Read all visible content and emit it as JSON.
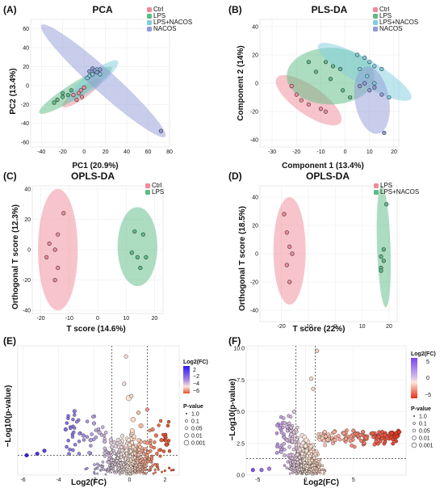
{
  "chart_data": [
    {
      "panel": "(A)",
      "type": "scatter",
      "title": "PCA",
      "xlabel": "PC1 (20.9%)",
      "ylabel": "PC2 (13.4%)",
      "xlim": [
        -50,
        80
      ],
      "ylim": [
        -65,
        70
      ],
      "xticks": [
        -40,
        -20,
        0,
        20,
        40,
        60,
        80
      ],
      "yticks": [
        -60,
        -40,
        -20,
        0,
        20,
        40,
        60
      ],
      "legend": [
        "Ctrl",
        "LPS",
        "LPS+NACOS",
        "NACOS"
      ],
      "series": [
        {
          "name": "Ctrl",
          "color": "#f08a98",
          "points": [
            [
              -10,
              -10
            ],
            [
              -5,
              -8
            ],
            [
              -3,
              -5
            ],
            [
              0,
              -2
            ],
            [
              -2,
              -12
            ],
            [
              -7,
              -15
            ]
          ],
          "ellipse": {
            "cx": -2,
            "cy": -8,
            "rx": 22,
            "ry": 6,
            "angle": 35
          }
        },
        {
          "name": "LPS",
          "color": "#5cbc84",
          "points": [
            [
              -25,
              -15
            ],
            [
              -20,
              -12
            ],
            [
              -15,
              -10
            ],
            [
              -12,
              -5
            ],
            [
              -20,
              -8
            ],
            [
              -28,
              -18
            ]
          ],
          "ellipse": {
            "cx": -8,
            "cy": -5,
            "rx": 40,
            "ry": 8,
            "angle": 32
          }
        },
        {
          "name": "LPS+NACOS",
          "color": "#7fcde0",
          "points": [
            [
              5,
              10
            ],
            [
              8,
              12
            ],
            [
              10,
              15
            ],
            [
              12,
              17
            ],
            [
              3,
              8
            ],
            [
              15,
              12
            ]
          ],
          "ellipse": {
            "cx": 8,
            "cy": 5,
            "rx": 30,
            "ry": 8,
            "angle": 38
          }
        },
        {
          "name": "NACOS",
          "color": "#8f9bd8",
          "points": [
            [
              5,
              15
            ],
            [
              8,
              18
            ],
            [
              10,
              16
            ],
            [
              12,
              14
            ],
            [
              15,
              17
            ],
            [
              72,
              -48
            ]
          ],
          "ellipse": {
            "cx": 18,
            "cy": 5,
            "rx": 78,
            "ry": 12,
            "angle": -42
          }
        }
      ]
    },
    {
      "panel": "(B)",
      "type": "scatter",
      "title": "PLS-DA",
      "xlabel": "Component 1 (13.4%)",
      "ylabel": "Component 2 (14%)",
      "xlim": [
        -35,
        22
      ],
      "ylim": [
        -45,
        45
      ],
      "xticks": [
        -30,
        -20,
        -10,
        0,
        10,
        20
      ],
      "yticks": [
        -40,
        -20,
        0,
        20,
        40
      ],
      "legend": [
        "Ctrl",
        "LPS",
        "LPS+NACOS",
        "NACOS"
      ],
      "series": [
        {
          "name": "Ctrl",
          "color": "#f08a98",
          "points": [
            [
              -22,
              -2
            ],
            [
              -20,
              -8
            ],
            [
              -18,
              -12
            ],
            [
              -15,
              -15
            ],
            [
              -10,
              -18
            ],
            [
              -8,
              -20
            ]
          ],
          "ellipse": {
            "cx": -15,
            "cy": -12,
            "rx": 16,
            "ry": 10,
            "angle": -35
          }
        },
        {
          "name": "LPS",
          "color": "#5cbc84",
          "points": [
            [
              -15,
              15
            ],
            [
              -8,
              15
            ],
            [
              -5,
              12
            ],
            [
              -2,
              10
            ],
            [
              -12,
              8
            ],
            [
              -6,
              3
            ],
            [
              -1,
              -5
            ],
            [
              2,
              -10
            ]
          ],
          "ellipse": {
            "cx": -6,
            "cy": 5,
            "rx": 18,
            "ry": 20,
            "angle": 0
          }
        },
        {
          "name": "LPS+NACOS",
          "color": "#7fcde0",
          "points": [
            [
              5,
              20
            ],
            [
              8,
              18
            ],
            [
              10,
              15
            ],
            [
              12,
              12
            ],
            [
              15,
              10
            ],
            [
              6,
              10
            ],
            [
              9,
              5
            ],
            [
              12,
              0
            ],
            [
              18,
              -10
            ]
          ],
          "ellipse": {
            "cx": 8,
            "cy": 8,
            "rx": 22,
            "ry": 9,
            "angle": -30
          }
        },
        {
          "name": "NACOS",
          "color": "#8f9bd8",
          "points": [
            [
              6,
              -2
            ],
            [
              8,
              0
            ],
            [
              10,
              -5
            ],
            [
              12,
              -3
            ],
            [
              15,
              -8
            ],
            [
              16,
              -35
            ]
          ],
          "ellipse": {
            "cx": 11,
            "cy": -12,
            "rx": 7,
            "ry": 24,
            "angle": 10
          }
        }
      ]
    },
    {
      "panel": "(C)",
      "type": "scatter",
      "title": "OPLS-DA",
      "xlabel": "T score (14.6%)",
      "ylabel": "Orthogonal T score  (12.3%)",
      "xlim": [
        -23,
        23
      ],
      "ylim": [
        -42,
        42
      ],
      "xticks": [
        -20,
        -10,
        0,
        10,
        20
      ],
      "yticks": [
        -40,
        -20,
        0,
        20,
        40
      ],
      "legend": [
        "Ctrl",
        "LPS"
      ],
      "series": [
        {
          "name": "Ctrl",
          "color": "#f08a98",
          "points": [
            [
              -12,
              24
            ],
            [
              -14,
              10
            ],
            [
              -17,
              4
            ],
            [
              -15,
              0
            ],
            [
              -18,
              -5
            ],
            [
              -14,
              -12
            ],
            [
              -15,
              -20
            ]
          ],
          "ellipse": {
            "cx": -14,
            "cy": 0,
            "rx": 7,
            "ry": 40,
            "angle": 0
          }
        },
        {
          "name": "LPS",
          "color": "#5cbc84",
          "points": [
            [
              13,
              12
            ],
            [
              16,
              10
            ],
            [
              12,
              -2
            ],
            [
              17,
              -5
            ],
            [
              14,
              -5
            ],
            [
              15,
              -12
            ]
          ],
          "ellipse": {
            "cx": 14,
            "cy": 2,
            "rx": 7,
            "ry": 26,
            "angle": 0
          }
        }
      ]
    },
    {
      "panel": "(D)",
      "type": "scatter",
      "title": "OPLS-DA",
      "xlabel": "T score (22%)",
      "ylabel": "Orthogonal T score  (18.5%)",
      "xlim": [
        -28,
        23
      ],
      "ylim": [
        -48,
        48
      ],
      "xticks": [
        -20,
        -10,
        0,
        10,
        20
      ],
      "yticks": [
        -40,
        -20,
        0,
        20,
        40
      ],
      "legend": [
        "LPS",
        "LPS+NACOS"
      ],
      "series": [
        {
          "name": "LPS",
          "color": "#f08a98",
          "points": [
            [
              -19,
              28
            ],
            [
              -18,
              15
            ],
            [
              -17,
              5
            ],
            [
              -16,
              0
            ],
            [
              -18,
              -8
            ],
            [
              -17,
              -20
            ]
          ],
          "ellipse": {
            "cx": -17,
            "cy": 2,
            "rx": 6,
            "ry": 38,
            "angle": 0
          }
        },
        {
          "name": "LPS+NACOS",
          "color": "#5cbc84",
          "points": [
            [
              19,
              35
            ],
            [
              18,
              3
            ],
            [
              17,
              -2
            ],
            [
              18,
              -5
            ],
            [
              17,
              -10
            ],
            [
              17,
              -12
            ]
          ],
          "ellipse": {
            "cx": 18,
            "cy": 5,
            "rx": 2.5,
            "ry": 43,
            "angle": 2
          }
        }
      ]
    },
    {
      "panel": "(E)",
      "type": "scatter",
      "subtype": "volcano",
      "xlabel": "Log2(FC)",
      "ylabel": "−Log10(p-value)",
      "xlim": [
        -6.3,
        2.8
      ],
      "ylim": [
        0,
        8.5
      ],
      "xticks": [
        -6,
        -4,
        -2,
        0,
        2
      ],
      "yticks": [],
      "vlines": [
        -1,
        1
      ],
      "hline": 1.3,
      "color_legend_title": "Log2(FC)",
      "color_legend_ticks": [
        "2",
        "−2",
        "−4",
        "−6"
      ],
      "color_range": [
        -6,
        2
      ],
      "color_low": "#2c17f2",
      "color_mid": "#fde8d8",
      "color_high": "#e8502a",
      "size_legend_title": "P-value",
      "size_legend": [
        "1.0",
        "0.1",
        "0.05",
        "0.01",
        "0.001"
      ],
      "highlight_points": [
        [
          -5.8,
          1.3
        ],
        [
          -5.2,
          1.4
        ],
        [
          -4.8,
          1.6
        ],
        [
          -3.1,
          4.2
        ],
        [
          -3.6,
          3.0
        ],
        [
          -2.6,
          2.6
        ],
        [
          -2.2,
          2.3
        ],
        [
          -2.0,
          3.4
        ],
        [
          -1.7,
          2.8
        ],
        [
          -1.4,
          2.2
        ],
        [
          -0.3,
          6.0
        ],
        [
          -0.2,
          7.8
        ],
        [
          0.1,
          5.2
        ],
        [
          0.5,
          4.1
        ],
        [
          1.0,
          4.3
        ],
        [
          1.5,
          2.6
        ],
        [
          1.8,
          2.3
        ],
        [
          2.1,
          2.0
        ],
        [
          1.3,
          3.0
        ]
      ]
    },
    {
      "panel": "(F)",
      "type": "scatter",
      "subtype": "volcano",
      "xlabel": "Log2(FC)",
      "ylabel": "−Log10(p-value)",
      "xlim": [
        -6.2,
        10.5
      ],
      "ylim": [
        0,
        10.2
      ],
      "xticks": [
        -5,
        0,
        5
      ],
      "yticks": [
        "0.0",
        "2.5",
        "5.0",
        "7.5",
        "10.0"
      ],
      "vlines": [
        -1,
        1
      ],
      "hline": 1.3,
      "color_legend_title": "Log2(FC)",
      "color_legend_ticks": [
        "5",
        "0",
        "−5"
      ],
      "color_range": [
        -6,
        10
      ],
      "color_low": "#7c42f2",
      "color_mid": "#fde8d8",
      "color_high": "#e8301a",
      "size_legend_title": "P-value",
      "size_legend": [
        "1.0",
        "0.1",
        "0.05",
        "0.01",
        "0.001"
      ],
      "highlight_points": [
        [
          -5.5,
          0.4
        ],
        [
          -4.6,
          0.4
        ],
        [
          -3.8,
          0.5
        ],
        [
          -2.2,
          4.1
        ],
        [
          -1.5,
          3.2
        ],
        [
          -1.2,
          5.0
        ],
        [
          0.6,
          7.6
        ],
        [
          0.8,
          6.8
        ],
        [
          1.2,
          9.8
        ],
        [
          2,
          3.4
        ],
        [
          3,
          3.4
        ],
        [
          4,
          3.3
        ],
        [
          5,
          3.5
        ],
        [
          6,
          3.4
        ],
        [
          7,
          3.3
        ],
        [
          8,
          3.4
        ],
        [
          9,
          3.3
        ],
        [
          9.8,
          3.4
        ]
      ]
    }
  ]
}
